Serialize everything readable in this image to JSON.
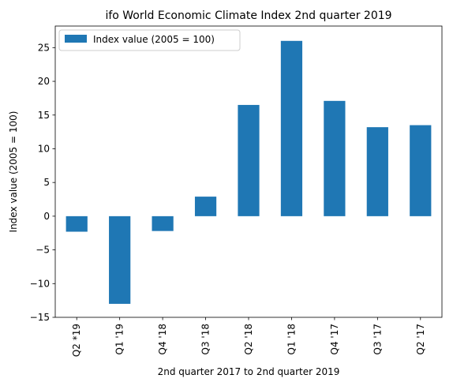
{
  "chart_data": {
    "type": "bar",
    "title": "ifo World Economic Climate Index 2nd quarter 2019",
    "xlabel": "2nd quarter 2017 to 2nd quarter 2019",
    "ylabel": "Index value (2005 = 100)",
    "categories": [
      "Q2 *19",
      "Q1 '19",
      "Q4 '18",
      "Q3 '18",
      "Q2 '18",
      "Q1 '18",
      "Q4 '17",
      "Q3 '17",
      "Q2 '17"
    ],
    "series": [
      {
        "name": "Index value (2005 = 100)",
        "values": [
          -2.3,
          -13.0,
          -2.2,
          2.9,
          16.5,
          26.0,
          17.1,
          13.2,
          13.5
        ],
        "color": "#1f77b4"
      }
    ],
    "ylim": [
      -15,
      28.2
    ],
    "yticks": [
      -15,
      -10,
      -5,
      0,
      5,
      10,
      15,
      20,
      25
    ],
    "legend": {
      "placement": "top-left",
      "entries": [
        "Index value (2005 = 100)"
      ]
    },
    "grid": false
  }
}
